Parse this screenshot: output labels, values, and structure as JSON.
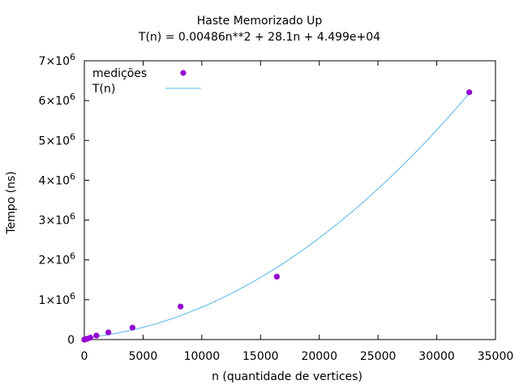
{
  "chart_data": {
    "type": "scatter",
    "title": "Haste Memorizado Up",
    "subtitle": "T(n) = 0.00486n**2 + 28.1n + 4.499e+04",
    "xlabel": "n (quantidade de vertices)",
    "ylabel": "Tempo (ns)",
    "xlim": [
      0,
      35000
    ],
    "ylim": [
      0,
      7000000
    ],
    "x_ticks": [
      "0",
      "5000",
      "10000",
      "15000",
      "20000",
      "25000",
      "30000",
      "35000"
    ],
    "y_ticks": [
      {
        "mantissa": "0",
        "exp": ""
      },
      {
        "mantissa": "1×10",
        "exp": "6"
      },
      {
        "mantissa": "2×10",
        "exp": "6"
      },
      {
        "mantissa": "3×10",
        "exp": "6"
      },
      {
        "mantissa": "4×10",
        "exp": "6"
      },
      {
        "mantissa": "5×10",
        "exp": "6"
      },
      {
        "mantissa": "6×10",
        "exp": "6"
      },
      {
        "mantissa": "7×10",
        "exp": "6"
      }
    ],
    "legend_position": "top-left",
    "grid": false,
    "series": [
      {
        "name": "medições",
        "kind": "points",
        "color": "#9400d3",
        "x": [
          2,
          4,
          8,
          16,
          32,
          64,
          128,
          256,
          512,
          1024,
          2048,
          4096,
          8192,
          16384,
          32768
        ],
        "y": [
          100,
          200,
          500,
          1000,
          2500,
          5000,
          11000,
          22000,
          48000,
          100000,
          180000,
          300000,
          830000,
          1580000,
          6210000
        ]
      },
      {
        "name": "T(n)",
        "kind": "line",
        "color": "#56b4e9",
        "fit": {
          "a": 0.00486,
          "b": 28.1,
          "c": 44990
        }
      }
    ]
  }
}
